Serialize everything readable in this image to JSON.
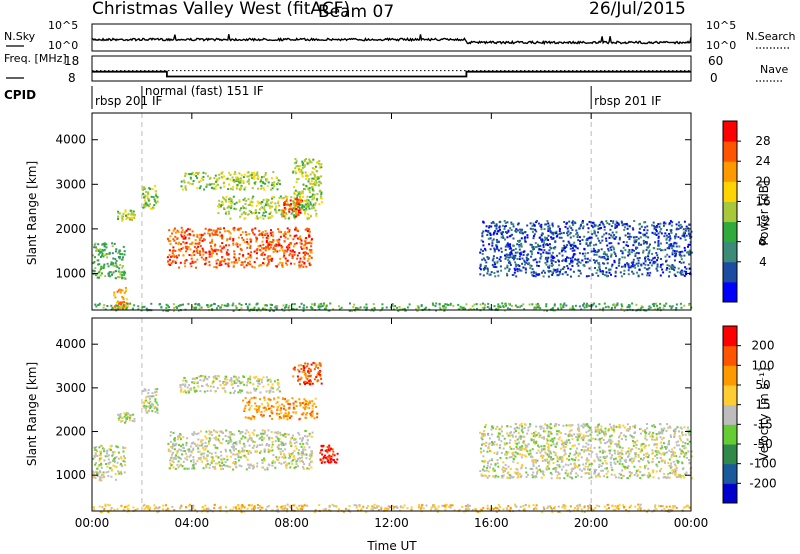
{
  "header": {
    "title": "Christmas Valley West (fitACF)",
    "beam": "Beam 07",
    "date": "26/Jul/2015"
  },
  "chart_data": [
    {
      "name": "noise-panel",
      "type": "line",
      "left_axis_label": "N.Sky",
      "right_axis_label": "N.Search",
      "left_ticks": [
        "10^5",
        "10^0"
      ],
      "right_ticks": [
        "10^5",
        "10^0"
      ],
      "n_sky_level_change_hour": 15.0
    },
    {
      "name": "frequency-panel",
      "type": "line",
      "left_axis_label": "Freq. [MHz]",
      "left_ticks": [
        "18",
        "8"
      ],
      "right_axis_label": "Nave",
      "right_ticks": [
        "60",
        "0"
      ],
      "freq_steps": [
        {
          "from_hour": 0.0,
          "to_hour": 3.0,
          "value": 11.5
        },
        {
          "from_hour": 3.0,
          "to_hour": 15.0,
          "value": 9.2
        },
        {
          "from_hour": 15.0,
          "to_hour": 24.0,
          "value": 11.5
        }
      ],
      "nave_reference": 24
    },
    {
      "name": "cpid-strip",
      "label": "CPID",
      "segments": [
        {
          "from_hour": 0.0,
          "to_hour": 2.0,
          "text": "rbsp 201 IF"
        },
        {
          "from_hour": 2.0,
          "to_hour": 20.0,
          "text": "normal (fast) 151 IF"
        },
        {
          "from_hour": 20.0,
          "to_hour": 24.0,
          "text": "rbsp 201 IF"
        }
      ]
    },
    {
      "name": "power-panel",
      "type": "heatmap",
      "ylabel": "Slant Range [km]",
      "yticks": [
        1000,
        2000,
        3000,
        4000
      ],
      "ylim": [
        180,
        4600
      ],
      "xlim": [
        0,
        24
      ],
      "colorbar_label": "Power [dB]",
      "colorbar_ticks": [
        "28",
        "24",
        "20",
        "16",
        "12",
        "8",
        "4"
      ],
      "colors": [
        "#0000ff",
        "#1c4ca2",
        "#3c8a78",
        "#2faa3c",
        "#a8c83c",
        "#ffd400",
        "#ff9900",
        "#ff5500",
        "#ff0000"
      ],
      "echo_regions": [
        {
          "x0": 0.0,
          "x1": 1.3,
          "y0": 900,
          "y1": 1700,
          "level": 3
        },
        {
          "x0": 0.8,
          "x1": 1.4,
          "y0": 200,
          "y1": 700,
          "level": 6
        },
        {
          "x0": 1.0,
          "x1": 1.7,
          "y0": 2200,
          "y1": 2450,
          "level": 4
        },
        {
          "x0": 2.0,
          "x1": 2.6,
          "y0": 2450,
          "y1": 3000,
          "level": 4
        },
        {
          "x0": 3.0,
          "x1": 8.8,
          "y0": 1150,
          "y1": 2050,
          "level": 7
        },
        {
          "x0": 3.5,
          "x1": 7.5,
          "y0": 2900,
          "y1": 3300,
          "level": 4
        },
        {
          "x0": 5.0,
          "x1": 9.0,
          "y0": 2250,
          "y1": 2750,
          "level": 4
        },
        {
          "x0": 8.0,
          "x1": 9.2,
          "y0": 2500,
          "y1": 3600,
          "level": 4
        },
        {
          "x0": 7.6,
          "x1": 8.4,
          "y0": 2300,
          "y1": 2700,
          "level": 7
        },
        {
          "x0": 15.5,
          "x1": 24.0,
          "y0": 950,
          "y1": 2200,
          "level": 1
        },
        {
          "x0": 0.0,
          "x1": 24.0,
          "y0": 180,
          "y1": 350,
          "level": 3
        }
      ]
    },
    {
      "name": "velocity-panel",
      "type": "heatmap",
      "ylabel": "Slant Range [km]",
      "yticks": [
        1000,
        2000,
        3000,
        4000
      ],
      "ylim": [
        180,
        4600
      ],
      "xlim": [
        0,
        24
      ],
      "xticks": [
        "00:00",
        "04:00",
        "08:00",
        "12:00",
        "16:00",
        "20:00",
        "00:00"
      ],
      "xlabel": "Time UT",
      "colorbar_label": "Velocity [m s⁻¹]",
      "colorbar_ticks": [
        "200",
        "100",
        "50",
        "15",
        "-15",
        "-50",
        "-100",
        "-200"
      ],
      "colors": [
        "#0000cc",
        "#1a5a9a",
        "#2f8a4a",
        "#66cc33",
        "#bdbdbd",
        "#ffcc33",
        "#ff9900",
        "#ff5500",
        "#ff0000"
      ],
      "echo_regions": [
        {
          "x0": 0.0,
          "x1": 1.3,
          "y0": 900,
          "y1": 1700,
          "level": 4
        },
        {
          "x0": 1.0,
          "x1": 1.7,
          "y0": 2200,
          "y1": 2450,
          "level": 4
        },
        {
          "x0": 2.0,
          "x1": 2.6,
          "y0": 2450,
          "y1": 3000,
          "level": 4
        },
        {
          "x0": 3.0,
          "x1": 8.8,
          "y0": 1150,
          "y1": 2050,
          "level": 4
        },
        {
          "x0": 3.5,
          "x1": 7.5,
          "y0": 2900,
          "y1": 3300,
          "level": 4
        },
        {
          "x0": 6.0,
          "x1": 9.0,
          "y0": 2300,
          "y1": 2800,
          "level": 6
        },
        {
          "x0": 8.0,
          "x1": 9.2,
          "y0": 3100,
          "y1": 3600,
          "level": 7
        },
        {
          "x0": 9.1,
          "x1": 9.8,
          "y0": 1300,
          "y1": 1700,
          "level": 8
        },
        {
          "x0": 15.5,
          "x1": 24.0,
          "y0": 950,
          "y1": 2200,
          "level": 4
        },
        {
          "x0": 0.0,
          "x1": 24.0,
          "y0": 180,
          "y1": 350,
          "level": 5
        }
      ]
    }
  ]
}
